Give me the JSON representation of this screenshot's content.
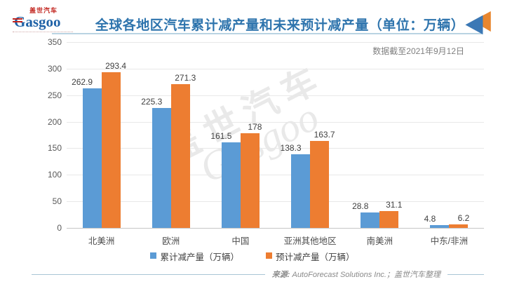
{
  "header": {
    "logo": {
      "brand_cn": "盖世汽车",
      "brand_en": "Gasgoo"
    },
    "title": "全球各地区汽车累计减产量和未来预计减产量（单位：万辆）",
    "title_color": "#2E74AD"
  },
  "note": "数据截至2021年9月12日",
  "chart_data": {
    "type": "bar",
    "title": "全球各地区汽车累计减产量和未来预计减产量（单位：万辆）",
    "categories": [
      "北美洲",
      "欧洲",
      "中国",
      "亚洲其他地区",
      "南美洲",
      "中东/非洲"
    ],
    "series": [
      {
        "name": "累计减产量（万辆）",
        "color": "#5B9BD5",
        "values": [
          262.9,
          225.3,
          161.5,
          138.3,
          28.8,
          4.8
        ]
      },
      {
        "name": "预计减产量（万辆）",
        "color": "#ED7D31",
        "values": [
          293.4,
          271.3,
          178,
          163.7,
          31.1,
          6.2
        ]
      }
    ],
    "xlabel": "",
    "ylabel": "",
    "ylim": [
      0,
      350
    ],
    "ytick_step": 50,
    "grid": true,
    "legend_position": "bottom"
  },
  "watermark": {
    "line1": "盖世汽车",
    "line2": "Gasgoo"
  },
  "footer": {
    "prefix": "来源:",
    "source": " AutoForecast Solutions Inc.；盖世汽车整理"
  },
  "icons": {
    "logo_mark": "gasgoo-logo",
    "header_arrow": "gasgoo-arrow-icon"
  }
}
